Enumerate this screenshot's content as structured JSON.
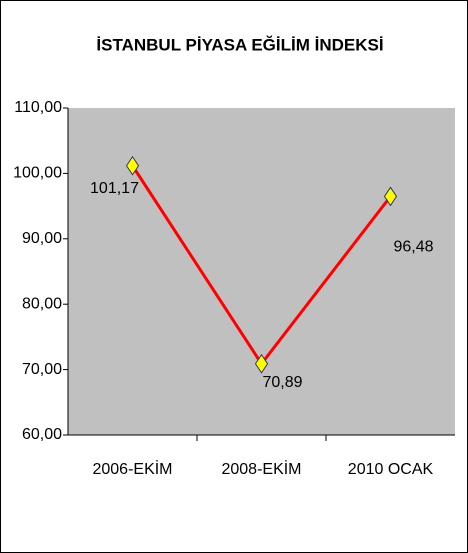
{
  "chart_data": {
    "type": "line",
    "title": "İSTANBUL PİYASA EĞİLİM İNDEKSİ",
    "categories": [
      "2006-EKİM",
      "2008-EKİM",
      "2010 OCAK"
    ],
    "values": [
      101.17,
      70.89,
      96.48
    ],
    "value_labels": [
      "101,17",
      "70,89",
      "96,48"
    ],
    "color": "#ff0000",
    "marker_color": "#ffff00",
    "plot_background": "#c0c0c0",
    "ylim": [
      60,
      110
    ],
    "yticks": [
      {
        "value": 60,
        "label": "60,00"
      },
      {
        "value": 70,
        "label": "70,00"
      },
      {
        "value": 80,
        "label": "80,00"
      },
      {
        "value": 90,
        "label": "90,00"
      },
      {
        "value": 100,
        "label": "100,00"
      },
      {
        "value": 110,
        "label": "110,00"
      }
    ],
    "grid": false
  }
}
